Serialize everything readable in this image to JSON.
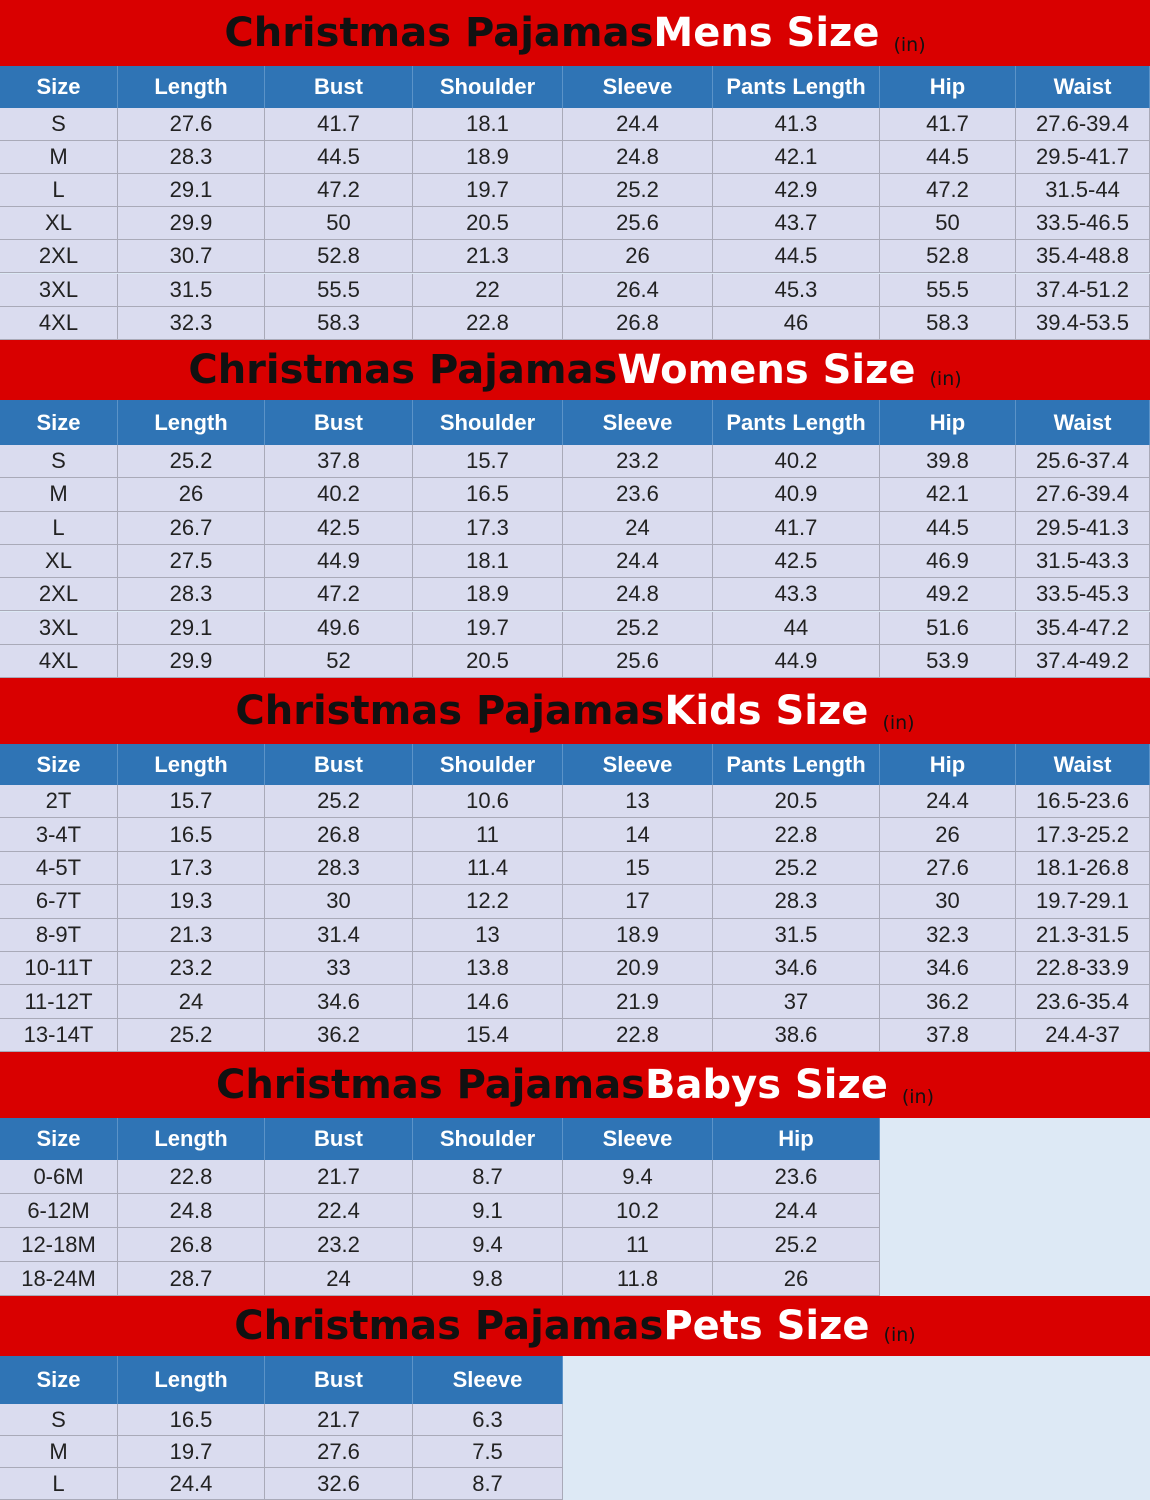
{
  "sections": [
    {
      "title": {
        "prefix": "Christmas Pajamas",
        "highlight": "Mens Size",
        "unit": "(in)"
      },
      "headers": [
        "Size",
        "Length",
        "Bust",
        "Shoulder",
        "Sleeve",
        "Pants Length",
        "Hip",
        "Waist"
      ],
      "rows": [
        [
          "S",
          "27.6",
          "41.7",
          "18.1",
          "24.4",
          "41.3",
          "41.7",
          "27.6-39.4"
        ],
        [
          "M",
          "28.3",
          "44.5",
          "18.9",
          "24.8",
          "42.1",
          "44.5",
          "29.5-41.7"
        ],
        [
          "L",
          "29.1",
          "47.2",
          "19.7",
          "25.2",
          "42.9",
          "47.2",
          "31.5-44"
        ],
        [
          "XL",
          "29.9",
          "50",
          "20.5",
          "25.6",
          "43.7",
          "50",
          "33.5-46.5"
        ],
        [
          "2XL",
          "30.7",
          "52.8",
          "21.3",
          "26",
          "44.5",
          "52.8",
          "35.4-48.8"
        ],
        [
          "3XL",
          "31.5",
          "55.5",
          "22",
          "26.4",
          "45.3",
          "55.5",
          "37.4-51.2"
        ],
        [
          "4XL",
          "32.3",
          "58.3",
          "22.8",
          "26.8",
          "46",
          "58.3",
          "39.4-53.5"
        ]
      ]
    },
    {
      "title": {
        "prefix": "Christmas Pajamas",
        "highlight": "Womens Size",
        "unit": "(in)"
      },
      "headers": [
        "Size",
        "Length",
        "Bust",
        "Shoulder",
        "Sleeve",
        "Pants Length",
        "Hip",
        "Waist"
      ],
      "rows": [
        [
          "S",
          "25.2",
          "37.8",
          "15.7",
          "23.2",
          "40.2",
          "39.8",
          "25.6-37.4"
        ],
        [
          "M",
          "26",
          "40.2",
          "16.5",
          "23.6",
          "40.9",
          "42.1",
          "27.6-39.4"
        ],
        [
          "L",
          "26.7",
          "42.5",
          "17.3",
          "24",
          "41.7",
          "44.5",
          "29.5-41.3"
        ],
        [
          "XL",
          "27.5",
          "44.9",
          "18.1",
          "24.4",
          "42.5",
          "46.9",
          "31.5-43.3"
        ],
        [
          "2XL",
          "28.3",
          "47.2",
          "18.9",
          "24.8",
          "43.3",
          "49.2",
          "33.5-45.3"
        ],
        [
          "3XL",
          "29.1",
          "49.6",
          "19.7",
          "25.2",
          "44",
          "51.6",
          "35.4-47.2"
        ],
        [
          "4XL",
          "29.9",
          "52",
          "20.5",
          "25.6",
          "44.9",
          "53.9",
          "37.4-49.2"
        ]
      ]
    },
    {
      "title": {
        "prefix": "Christmas Pajamas",
        "highlight": "Kids Size",
        "unit": "(in)"
      },
      "headers": [
        "Size",
        "Length",
        "Bust",
        "Shoulder",
        "Sleeve",
        "Pants Length",
        "Hip",
        "Waist"
      ],
      "rows": [
        [
          "2T",
          "15.7",
          "25.2",
          "10.6",
          "13",
          "20.5",
          "24.4",
          "16.5-23.6"
        ],
        [
          "3-4T",
          "16.5",
          "26.8",
          "11",
          "14",
          "22.8",
          "26",
          "17.3-25.2"
        ],
        [
          "4-5T",
          "17.3",
          "28.3",
          "11.4",
          "15",
          "25.2",
          "27.6",
          "18.1-26.8"
        ],
        [
          "6-7T",
          "19.3",
          "30",
          "12.2",
          "17",
          "28.3",
          "30",
          "19.7-29.1"
        ],
        [
          "8-9T",
          "21.3",
          "31.4",
          "13",
          "18.9",
          "31.5",
          "32.3",
          "21.3-31.5"
        ],
        [
          "10-11T",
          "23.2",
          "33",
          "13.8",
          "20.9",
          "34.6",
          "34.6",
          "22.8-33.9"
        ],
        [
          "11-12T",
          "24",
          "34.6",
          "14.6",
          "21.9",
          "37",
          "36.2",
          "23.6-35.4"
        ],
        [
          "13-14T",
          "25.2",
          "36.2",
          "15.4",
          "22.8",
          "38.6",
          "37.8",
          "24.4-37"
        ]
      ]
    },
    {
      "title": {
        "prefix": "Christmas Pajamas",
        "highlight": "Babys Size",
        "unit": "(in)"
      },
      "headers": [
        "Size",
        "Length",
        "Bust",
        "Shoulder",
        "Sleeve",
        "Hip"
      ],
      "rows": [
        [
          "0-6M",
          "22.8",
          "21.7",
          "8.7",
          "9.4",
          "23.6"
        ],
        [
          "6-12M",
          "24.8",
          "22.4",
          "9.1",
          "10.2",
          "24.4"
        ],
        [
          "12-18M",
          "26.8",
          "23.2",
          "9.4",
          "11",
          "25.2"
        ],
        [
          "18-24M",
          "28.7",
          "24",
          "9.8",
          "11.8",
          "26"
        ]
      ]
    },
    {
      "title": {
        "prefix": "Christmas Pajamas",
        "highlight": "Pets Size",
        "unit": "(in)"
      },
      "headers": [
        "Size",
        "Length",
        "Bust",
        "Sleeve"
      ],
      "rows": [
        [
          "S",
          "16.5",
          "21.7",
          "6.3"
        ],
        [
          "M",
          "19.7",
          "27.6",
          "7.5"
        ],
        [
          "L",
          "24.4",
          "32.6",
          "8.7"
        ]
      ]
    }
  ]
}
